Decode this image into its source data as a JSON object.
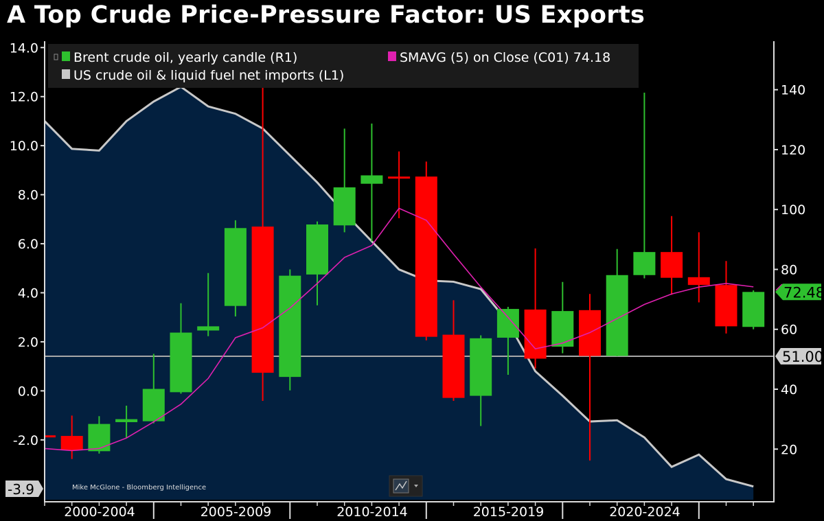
{
  "title": "A Top Crude Price-Pressure Factor: US Exports",
  "chart_data": {
    "type": "candlestick+line+area",
    "title": "A Top Crude Price-Pressure Factor: US Exports",
    "watermark": "Mike McGlone - Bloomberg Intelligence",
    "legend": {
      "placement": "top-left",
      "entries": [
        {
          "label": "Brent crude oil, yearly candle (R1)",
          "color": "#2ec02e"
        },
        {
          "label": "SMAVG (5)  on Close (C01) 74.18",
          "color": "#e020b0"
        },
        {
          "label": "US crude oil & liquid fuel net imports (L1)",
          "color": "#c8c8c8"
        }
      ]
    },
    "x_tick_labels": [
      "2000-2004",
      "2005-2009",
      "2010-2014",
      "2015-2019",
      "2020-2024"
    ],
    "years": [
      2000,
      2001,
      2002,
      2003,
      2004,
      2005,
      2006,
      2007,
      2008,
      2009,
      2010,
      2011,
      2012,
      2013,
      2014,
      2015,
      2016,
      2017,
      2018,
      2019,
      2020,
      2021,
      2022,
      2023,
      2024,
      2025,
      2026
    ],
    "left_axis": {
      "ticks": [
        -2.0,
        0.0,
        2.0,
        4.0,
        6.0,
        8.0,
        10.0,
        12.0,
        14.0
      ],
      "range": [
        -4.44,
        14.26
      ]
    },
    "right_axis": {
      "ticks": [
        20,
        40,
        60,
        80,
        100,
        120,
        140
      ],
      "range": [
        3.1,
        156.2
      ]
    },
    "brent_candles": [
      {
        "o": 24.6,
        "h": 25.5,
        "l": 23.5,
        "c": 24.2
      },
      {
        "o": 24.4,
        "h": 31.2,
        "l": 16.7,
        "c": 19.7
      },
      {
        "o": 19.3,
        "h": 31.0,
        "l": 18.5,
        "c": 28.4
      },
      {
        "o": 29.0,
        "h": 34.5,
        "l": 23.7,
        "c": 30.0
      },
      {
        "o": 29.3,
        "h": 51.8,
        "l": 28.6,
        "c": 40.1
      },
      {
        "o": 39.0,
        "h": 68.7,
        "l": 38.5,
        "c": 58.9
      },
      {
        "o": 59.6,
        "h": 78.8,
        "l": 57.7,
        "c": 61.0
      },
      {
        "o": 67.8,
        "h": 96.4,
        "l": 64.3,
        "c": 93.8
      },
      {
        "o": 94.3,
        "h": 146.0,
        "l": 36.1,
        "c": 45.5
      },
      {
        "o": 44.1,
        "h": 80.0,
        "l": 39.6,
        "c": 77.9
      },
      {
        "o": 78.3,
        "h": 96.0,
        "l": 68.0,
        "c": 95.0
      },
      {
        "o": 94.7,
        "h": 127.0,
        "l": 92.4,
        "c": 107.4
      },
      {
        "o": 108.6,
        "h": 128.7,
        "l": 89.4,
        "c": 111.4
      },
      {
        "o": 111.0,
        "h": 119.4,
        "l": 97.1,
        "c": 110.5
      },
      {
        "o": 111.0,
        "h": 116.0,
        "l": 56.3,
        "c": 57.5
      },
      {
        "o": 58.2,
        "h": 69.7,
        "l": 36.1,
        "c": 37.1
      },
      {
        "o": 37.8,
        "h": 58.0,
        "l": 27.7,
        "c": 57.0
      },
      {
        "o": 57.2,
        "h": 67.5,
        "l": 44.8,
        "c": 66.8
      },
      {
        "o": 66.6,
        "h": 87.0,
        "l": 46.9,
        "c": 50.2
      },
      {
        "o": 54.2,
        "h": 75.8,
        "l": 52.0,
        "c": 66.1
      },
      {
        "o": 66.4,
        "h": 71.8,
        "l": 16.2,
        "c": 51.1
      },
      {
        "o": 51.1,
        "h": 86.8,
        "l": 51.0,
        "c": 78.1
      },
      {
        "o": 78.1,
        "h": 139.0,
        "l": 77.0,
        "c": 85.8
      },
      {
        "o": 85.8,
        "h": 97.8,
        "l": 71.5,
        "c": 77.2
      },
      {
        "o": 77.4,
        "h": 92.4,
        "l": 69.0,
        "c": 74.8
      },
      {
        "o": 74.8,
        "h": 82.8,
        "l": 58.6,
        "c": 61.0
      },
      {
        "o": 60.8,
        "h": 73.0,
        "l": 60.0,
        "c": 72.48
      }
    ],
    "smavg_5": [
      20.2,
      19.5,
      20.2,
      23.7,
      29.1,
      35.0,
      43.6,
      57.2,
      60.5,
      67.1,
      75.3,
      84.0,
      88.0,
      100.4,
      96.4,
      85.1,
      74.1,
      64.0,
      53.5,
      55.4,
      58.9,
      63.6,
      68.3,
      71.8,
      74.1,
      75.3,
      74.18
    ],
    "net_imports": [
      11.0,
      9.87,
      9.8,
      11.0,
      11.8,
      12.4,
      11.6,
      11.3,
      10.7,
      9.6,
      8.5,
      7.25,
      6.1,
      4.95,
      4.5,
      4.45,
      4.15,
      2.8,
      0.8,
      -0.2,
      -1.25,
      -1.2,
      -1.9,
      -3.1,
      -2.6,
      -3.6,
      -3.9
    ],
    "horizontal_line": {
      "value": 51.0,
      "label": "51.00"
    },
    "last_labels": {
      "brent": "72.48",
      "smavg": "74.18",
      "net_imports": "-3.9"
    },
    "colors": {
      "up": "#2ec02e",
      "down": "#ff0000",
      "sma": "#e020b0",
      "imports_line": "#c8c8c8",
      "imports_fill": "#03203f",
      "background": "#000000"
    }
  }
}
